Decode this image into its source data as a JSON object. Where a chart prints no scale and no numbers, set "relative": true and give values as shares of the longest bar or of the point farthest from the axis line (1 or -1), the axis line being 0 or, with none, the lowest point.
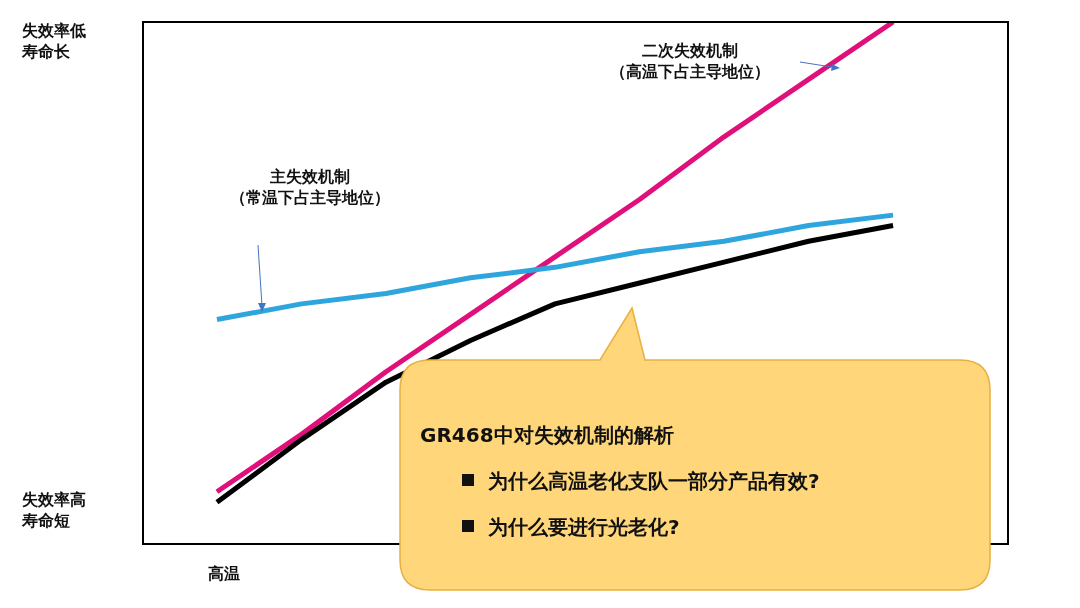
{
  "chart_data": {
    "type": "line",
    "relative": true,
    "legend": false,
    "tick_labels": false,
    "marker": "none",
    "line_style": "solid",
    "categories": [
      null,
      null,
      null,
      null,
      null,
      null,
      null,
      null,
      null
    ],
    "series": [
      {
        "color": "#2ea6dd",
        "values": [
          0.43,
          0.46,
          0.48,
          0.51,
          0.53,
          0.56,
          0.58,
          0.61,
          0.63
        ]
      },
      {
        "color": "#000000",
        "values": [
          0.08,
          0.2,
          0.31,
          0.39,
          0.46,
          0.5,
          0.54,
          0.58,
          0.61
        ]
      },
      {
        "color": "#e0107a",
        "values": [
          0.1,
          0.21,
          0.33,
          0.44,
          0.55,
          0.66,
          0.78,
          0.89,
          1.0
        ]
      }
    ],
    "annotations": [
      "失效率低寿命长",
      "失效率高寿命短",
      "高温",
      "二次失效机制",
      "（高温下占主导地位）",
      "主失效机制",
      "（常温下占主导地位）",
      "GR468中对失效机制的解析",
      "为什么高温老化支队一部分产品有效?",
      "为什么要进行光老化?"
    ]
  }
}
